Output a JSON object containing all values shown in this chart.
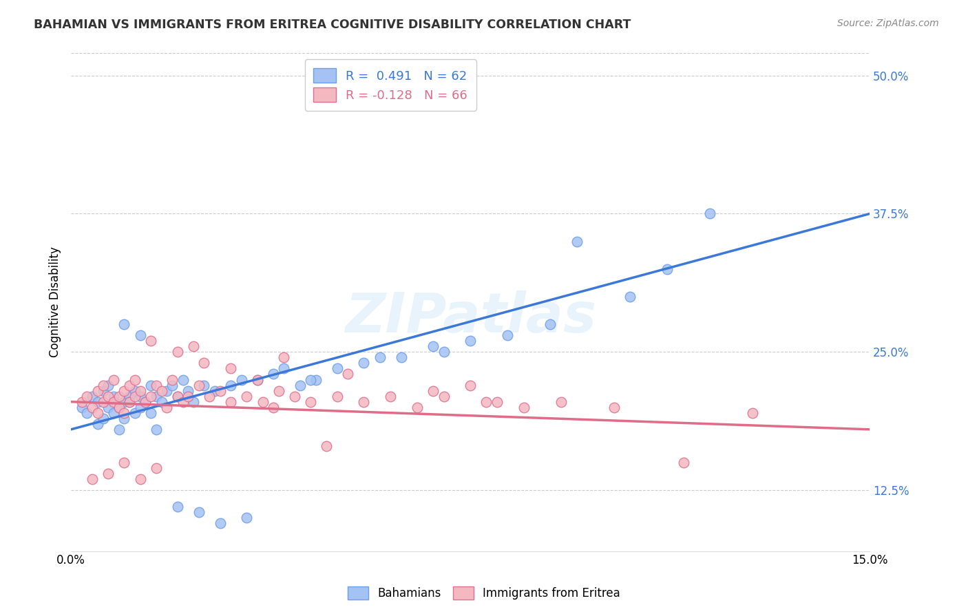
{
  "title": "BAHAMIAN VS IMMIGRANTS FROM ERITREA COGNITIVE DISABILITY CORRELATION CHART",
  "source": "Source: ZipAtlas.com",
  "ylabel": "Cognitive Disability",
  "right_yticks": [
    12.5,
    25.0,
    37.5,
    50.0
  ],
  "right_ytick_labels": [
    "12.5%",
    "25.0%",
    "37.5%",
    "50.0%"
  ],
  "xmin": 0.0,
  "xmax": 15.0,
  "ymin": 7.0,
  "ymax": 52.0,
  "watermark": "ZIPatlas",
  "blue_color": "#a4c2f4",
  "pink_color": "#f4b8c1",
  "blue_line_color": "#3c78d8",
  "pink_line_color": "#e06c8a",
  "blue_dot_edge": "#6d9eeb",
  "pink_dot_edge": "#e07090",
  "bahamian_x": [
    0.2,
    0.3,
    0.4,
    0.5,
    0.5,
    0.6,
    0.6,
    0.7,
    0.7,
    0.8,
    0.8,
    0.9,
    0.9,
    1.0,
    1.0,
    1.1,
    1.1,
    1.2,
    1.2,
    1.3,
    1.3,
    1.4,
    1.5,
    1.5,
    1.6,
    1.7,
    1.8,
    1.9,
    2.0,
    2.1,
    2.2,
    2.3,
    2.5,
    2.7,
    3.0,
    3.2,
    3.5,
    3.8,
    4.0,
    4.3,
    4.6,
    5.0,
    5.5,
    6.2,
    6.8,
    7.5,
    8.2,
    9.0,
    10.5,
    11.2,
    1.0,
    1.3,
    1.6,
    2.0,
    2.4,
    2.8,
    3.3,
    4.5,
    5.8,
    7.0,
    9.5,
    12.0
  ],
  "bahamian_y": [
    20.0,
    19.5,
    21.0,
    20.5,
    18.5,
    19.0,
    21.5,
    20.0,
    22.0,
    19.5,
    21.0,
    20.0,
    18.0,
    20.5,
    19.0,
    21.0,
    20.5,
    19.5,
    21.5,
    20.0,
    21.0,
    20.5,
    19.5,
    22.0,
    21.0,
    20.5,
    21.5,
    22.0,
    21.0,
    22.5,
    21.5,
    20.5,
    22.0,
    21.5,
    22.0,
    22.5,
    22.5,
    23.0,
    23.5,
    22.0,
    22.5,
    23.5,
    24.0,
    24.5,
    25.5,
    26.0,
    26.5,
    27.5,
    30.0,
    32.5,
    27.5,
    26.5,
    18.0,
    11.0,
    10.5,
    9.5,
    10.0,
    22.5,
    24.5,
    25.0,
    35.0,
    37.5
  ],
  "eritrea_x": [
    0.2,
    0.3,
    0.4,
    0.5,
    0.5,
    0.6,
    0.6,
    0.7,
    0.8,
    0.8,
    0.9,
    0.9,
    1.0,
    1.0,
    1.1,
    1.1,
    1.2,
    1.2,
    1.3,
    1.4,
    1.5,
    1.6,
    1.7,
    1.8,
    1.9,
    2.0,
    2.1,
    2.2,
    2.4,
    2.6,
    2.8,
    3.0,
    3.3,
    3.6,
    3.9,
    4.2,
    4.5,
    5.0,
    5.5,
    6.0,
    6.5,
    7.0,
    7.8,
    8.5,
    9.2,
    0.4,
    0.7,
    1.0,
    1.3,
    1.6,
    2.0,
    2.5,
    3.0,
    3.5,
    4.0,
    5.2,
    6.8,
    8.0,
    10.2,
    11.5,
    12.8,
    1.5,
    2.3,
    3.8,
    4.8,
    7.5
  ],
  "eritrea_y": [
    20.5,
    21.0,
    20.0,
    21.5,
    19.5,
    20.5,
    22.0,
    21.0,
    20.5,
    22.5,
    21.0,
    20.0,
    21.5,
    19.5,
    22.0,
    20.5,
    21.0,
    22.5,
    21.5,
    20.5,
    21.0,
    22.0,
    21.5,
    20.0,
    22.5,
    21.0,
    20.5,
    21.0,
    22.0,
    21.0,
    21.5,
    20.5,
    21.0,
    20.5,
    21.5,
    21.0,
    20.5,
    21.0,
    20.5,
    21.0,
    20.0,
    21.0,
    20.5,
    20.0,
    20.5,
    13.5,
    14.0,
    15.0,
    13.5,
    14.5,
    25.0,
    24.0,
    23.5,
    22.5,
    24.5,
    23.0,
    21.5,
    20.5,
    20.0,
    15.0,
    19.5,
    26.0,
    25.5,
    20.0,
    16.5,
    22.0
  ]
}
